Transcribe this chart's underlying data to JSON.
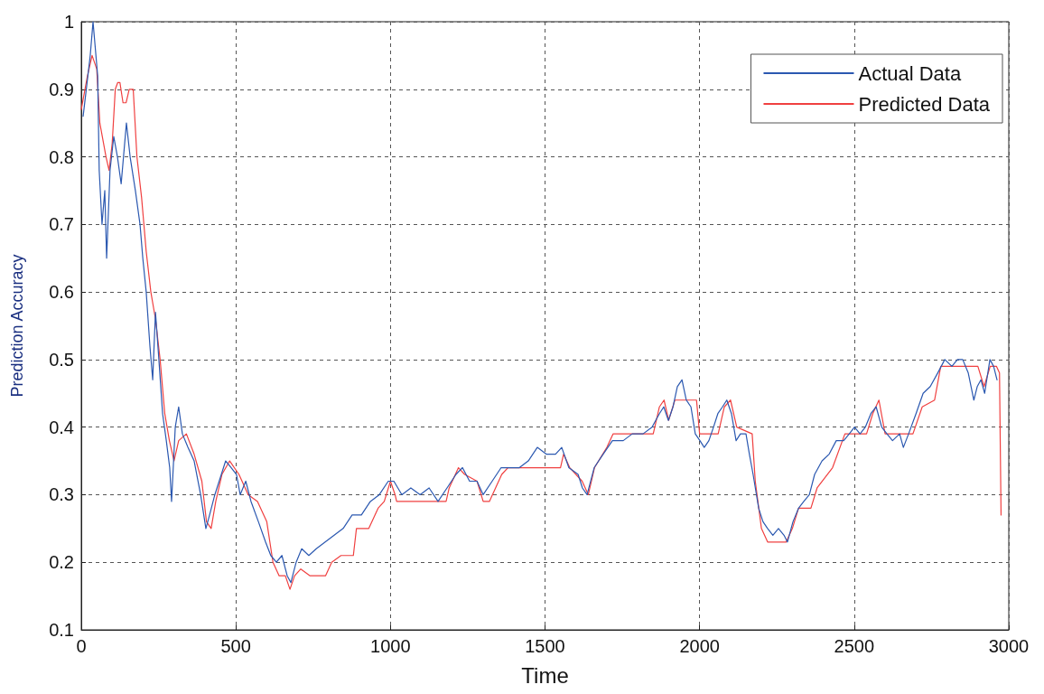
{
  "chart_data": {
    "type": "line",
    "xlabel": "Time",
    "ylabel": "Prediction Accuracy",
    "xlim": [
      0,
      3000
    ],
    "xticks": [
      0,
      500,
      1000,
      1500,
      2000,
      2500,
      3000
    ],
    "ylim": [
      0.1,
      1
    ],
    "yticks": [
      0.1,
      0.2,
      0.3,
      0.4,
      0.5,
      0.6,
      0.7,
      0.8,
      0.9,
      1
    ],
    "grid": true,
    "legend": "top right",
    "marker": "none",
    "line_style": "solid",
    "series": [
      {
        "name": "Actual Data",
        "color": "#2b58b0",
        "x": [
          6,
          29,
          38,
          53,
          58,
          67,
          76,
          82,
          93,
          105,
          117,
          129,
          146,
          158,
          175,
          190,
          199,
          210,
          222,
          231,
          240,
          251,
          263,
          275,
          286,
          292,
          304,
          315,
          327,
          345,
          365,
          386,
          403,
          415,
          432,
          453,
          467,
          485,
          502,
          514,
          532,
          549,
          573,
          596,
          613,
          631,
          649,
          666,
          678,
          695,
          713,
          736,
          760,
          789,
          818,
          847,
          876,
          906,
          935,
          964,
          993,
          1011,
          1037,
          1066,
          1096,
          1125,
          1154,
          1183,
          1212,
          1233,
          1256,
          1280,
          1300,
          1329,
          1358,
          1388,
          1417,
          1446,
          1475,
          1504,
          1534,
          1554,
          1577,
          1607,
          1621,
          1636,
          1659,
          1688,
          1718,
          1753,
          1782,
          1817,
          1846,
          1870,
          1884,
          1899,
          1914,
          1928,
          1943,
          1957,
          1972,
          1986,
          2001,
          2015,
          2030,
          2045,
          2059,
          2074,
          2088,
          2103,
          2118,
          2132,
          2150,
          2161,
          2173,
          2191,
          2205,
          2220,
          2237,
          2255,
          2273,
          2284,
          2302,
          2320,
          2337,
          2355,
          2372,
          2396,
          2419,
          2442,
          2466,
          2484,
          2501,
          2519,
          2536,
          2554,
          2571,
          2589,
          2606,
          2624,
          2647,
          2659,
          2676,
          2700,
          2723,
          2746,
          2770,
          2793,
          2816,
          2834,
          2851,
          2869,
          2887,
          2898,
          2910,
          2922,
          2939,
          2951,
          2962
        ],
        "values": [
          0.86,
          0.95,
          1.0,
          0.92,
          0.78,
          0.7,
          0.75,
          0.65,
          0.78,
          0.83,
          0.8,
          0.76,
          0.85,
          0.8,
          0.75,
          0.7,
          0.65,
          0.6,
          0.52,
          0.47,
          0.57,
          0.5,
          0.42,
          0.38,
          0.34,
          0.29,
          0.4,
          0.43,
          0.39,
          0.37,
          0.35,
          0.3,
          0.25,
          0.27,
          0.3,
          0.33,
          0.35,
          0.34,
          0.33,
          0.3,
          0.32,
          0.29,
          0.26,
          0.23,
          0.21,
          0.2,
          0.21,
          0.18,
          0.17,
          0.2,
          0.22,
          0.21,
          0.22,
          0.23,
          0.24,
          0.25,
          0.27,
          0.27,
          0.29,
          0.3,
          0.32,
          0.32,
          0.3,
          0.31,
          0.3,
          0.31,
          0.29,
          0.31,
          0.33,
          0.34,
          0.32,
          0.32,
          0.3,
          0.32,
          0.34,
          0.34,
          0.34,
          0.35,
          0.37,
          0.36,
          0.36,
          0.37,
          0.34,
          0.33,
          0.31,
          0.3,
          0.34,
          0.36,
          0.38,
          0.38,
          0.39,
          0.39,
          0.4,
          0.42,
          0.43,
          0.41,
          0.43,
          0.46,
          0.47,
          0.44,
          0.43,
          0.39,
          0.38,
          0.37,
          0.38,
          0.4,
          0.42,
          0.43,
          0.44,
          0.42,
          0.38,
          0.39,
          0.39,
          0.36,
          0.33,
          0.28,
          0.26,
          0.25,
          0.24,
          0.25,
          0.24,
          0.23,
          0.26,
          0.28,
          0.29,
          0.3,
          0.33,
          0.35,
          0.36,
          0.38,
          0.38,
          0.39,
          0.4,
          0.39,
          0.4,
          0.42,
          0.43,
          0.4,
          0.39,
          0.38,
          0.39,
          0.37,
          0.39,
          0.42,
          0.45,
          0.46,
          0.48,
          0.5,
          0.49,
          0.5,
          0.5,
          0.48,
          0.44,
          0.46,
          0.47,
          0.45,
          0.5,
          0.49,
          0.47
        ]
      },
      {
        "name": "Predicted Data",
        "color": "#f04040",
        "x": [
          0,
          20,
          35,
          50,
          60,
          80,
          90,
          100,
          110,
          118,
          125,
          135,
          145,
          155,
          168,
          180,
          195,
          210,
          225,
          240,
          255,
          270,
          285,
          300,
          315,
          340,
          365,
          390,
          405,
          420,
          435,
          455,
          480,
          510,
          540,
          570,
          600,
          620,
          640,
          660,
          675,
          690,
          710,
          740,
          790,
          810,
          840,
          880,
          890,
          930,
          960,
          980,
          1000,
          1015,
          1020,
          1100,
          1180,
          1190,
          1220,
          1240,
          1280,
          1300,
          1320,
          1340,
          1360,
          1380,
          1400,
          1500,
          1550,
          1560,
          1580,
          1620,
          1640,
          1660,
          1700,
          1720,
          1850,
          1870,
          1885,
          1900,
          1920,
          1990,
          2000,
          2060,
          2080,
          2100,
          2120,
          2170,
          2180,
          2200,
          2220,
          2280,
          2300,
          2320,
          2340,
          2360,
          2380,
          2430,
          2470,
          2540,
          2560,
          2580,
          2600,
          2660,
          2690,
          2720,
          2760,
          2780,
          2900,
          2920,
          2940,
          2960,
          2970,
          2975
        ],
        "values": [
          0.87,
          0.92,
          0.95,
          0.93,
          0.85,
          0.8,
          0.78,
          0.82,
          0.9,
          0.91,
          0.91,
          0.88,
          0.88,
          0.9,
          0.9,
          0.8,
          0.74,
          0.66,
          0.6,
          0.56,
          0.5,
          0.42,
          0.38,
          0.35,
          0.38,
          0.39,
          0.36,
          0.32,
          0.26,
          0.25,
          0.29,
          0.33,
          0.35,
          0.33,
          0.3,
          0.29,
          0.26,
          0.2,
          0.18,
          0.18,
          0.16,
          0.18,
          0.19,
          0.18,
          0.18,
          0.2,
          0.21,
          0.21,
          0.25,
          0.25,
          0.28,
          0.29,
          0.32,
          0.3,
          0.29,
          0.29,
          0.29,
          0.31,
          0.34,
          0.33,
          0.32,
          0.29,
          0.29,
          0.31,
          0.33,
          0.34,
          0.34,
          0.34,
          0.34,
          0.36,
          0.34,
          0.32,
          0.3,
          0.34,
          0.37,
          0.39,
          0.39,
          0.43,
          0.44,
          0.41,
          0.44,
          0.44,
          0.39,
          0.39,
          0.43,
          0.44,
          0.4,
          0.39,
          0.32,
          0.25,
          0.23,
          0.23,
          0.25,
          0.28,
          0.28,
          0.28,
          0.31,
          0.34,
          0.39,
          0.39,
          0.42,
          0.44,
          0.39,
          0.39,
          0.39,
          0.43,
          0.44,
          0.49,
          0.49,
          0.46,
          0.49,
          0.49,
          0.48,
          0.27
        ]
      }
    ]
  }
}
